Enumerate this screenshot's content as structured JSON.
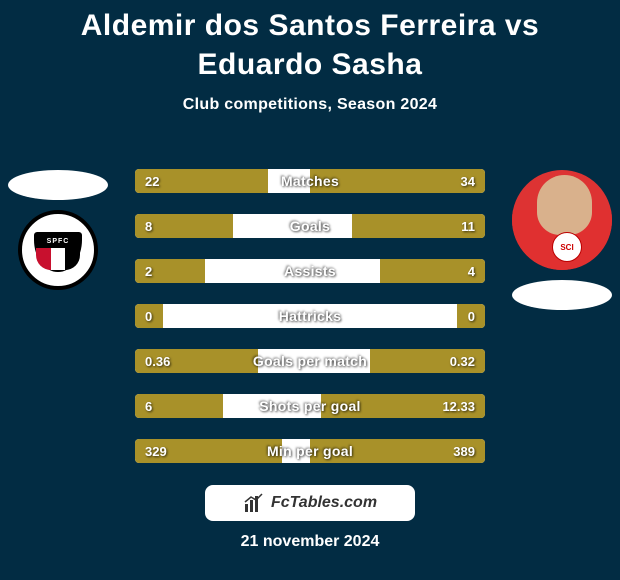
{
  "colors": {
    "background": "#022c43",
    "bar_fill": "#a89129",
    "bar_bg": "#ffffff",
    "text": "#ffffff"
  },
  "title": "Aldemir dos Santos Ferreira vs Eduardo Sasha",
  "subtitle": "Club competitions, Season 2024",
  "player_left": {
    "name": "Aldemir dos Santos Ferreira",
    "club_abbrev": "SPFC"
  },
  "player_right": {
    "name": "Eduardo Sasha",
    "club_abbrev": "SCI"
  },
  "stats": [
    {
      "label": "Matches",
      "left_value": "22",
      "right_value": "34",
      "left_pct": 38,
      "right_pct": 50
    },
    {
      "label": "Goals",
      "left_value": "8",
      "right_value": "11",
      "left_pct": 28,
      "right_pct": 38
    },
    {
      "label": "Assists",
      "left_value": "2",
      "right_value": "4",
      "left_pct": 20,
      "right_pct": 30
    },
    {
      "label": "Hattricks",
      "left_value": "0",
      "right_value": "0",
      "left_pct": 8,
      "right_pct": 8
    },
    {
      "label": "Goals per match",
      "left_value": "0.36",
      "right_value": "0.32",
      "left_pct": 35,
      "right_pct": 33
    },
    {
      "label": "Shots per goal",
      "left_value": "6",
      "right_value": "12.33",
      "left_pct": 25,
      "right_pct": 47
    },
    {
      "label": "Min per goal",
      "left_value": "329",
      "right_value": "389",
      "left_pct": 42,
      "right_pct": 50
    }
  ],
  "footer_brand": "FcTables.com",
  "footer_date": "21 november 2024",
  "typography": {
    "title_fontsize": 30,
    "subtitle_fontsize": 16,
    "stat_label_fontsize": 14,
    "stat_value_fontsize": 13,
    "footer_fontsize": 16
  }
}
